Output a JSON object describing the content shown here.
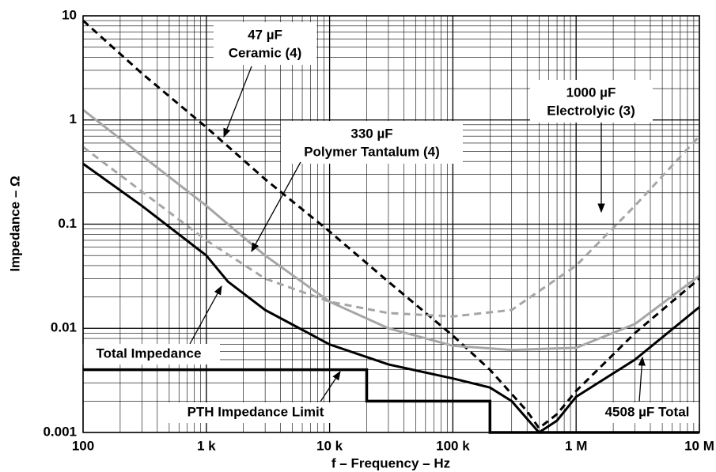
{
  "chart_data": {
    "type": "line",
    "xlabel": "f – Frequency – Hz",
    "ylabel": "Impedance – Ω",
    "xscale": "log",
    "yscale": "log",
    "grid": true,
    "minor_grid": true,
    "xlim": [
      100,
      10000000
    ],
    "ylim": [
      0.001,
      10
    ],
    "xticks": [
      100,
      {
        "value": 1000,
        "label": "1 k"
      },
      {
        "value": 10000,
        "label": "10 k"
      },
      {
        "value": 100000,
        "label": "100 k"
      },
      {
        "value": 1000000,
        "label": "1 M"
      },
      {
        "value": 10000000,
        "label": "10 M"
      }
    ],
    "yticks": [
      0.001,
      0.01,
      0.1,
      1,
      10
    ],
    "series": [
      {
        "name": "47 µF Ceramic (4)",
        "color": "#000000",
        "dash": true,
        "x": [
          100,
          300,
          1000,
          3000,
          10000,
          30000,
          100000,
          200000,
          400000,
          500000,
          700000,
          1000000,
          3000000,
          10000000
        ],
        "values": [
          9,
          2.8,
          0.85,
          0.27,
          0.085,
          0.028,
          0.0085,
          0.004,
          0.0016,
          0.0011,
          0.0015,
          0.0025,
          0.009,
          0.03
        ]
      },
      {
        "name": "330 µF Polymer Tantalum (4)",
        "color": "#a6a6a6",
        "dash": false,
        "x": [
          100,
          1000,
          3000,
          10000,
          30000,
          100000,
          300000,
          1000000,
          3000000,
          10000000
        ],
        "values": [
          1.25,
          0.15,
          0.05,
          0.018,
          0.01,
          0.0068,
          0.0062,
          0.0065,
          0.011,
          0.032
        ]
      },
      {
        "name": "1000 µF Electrolyic (3)",
        "color": "#a6a6a6",
        "dash": true,
        "x": [
          100,
          1000,
          3000,
          10000,
          30000,
          100000,
          300000,
          1000000,
          3000000,
          10000000
        ],
        "values": [
          0.55,
          0.07,
          0.03,
          0.018,
          0.014,
          0.013,
          0.015,
          0.04,
          0.15,
          0.7
        ]
      },
      {
        "name": "Total Impedance",
        "color": "#000000",
        "dash": false,
        "x": [
          100,
          300,
          1000,
          1500,
          3000,
          10000,
          30000,
          100000,
          200000,
          300000,
          500000,
          700000,
          1000000,
          3000000,
          10000000
        ],
        "values": [
          0.38,
          0.15,
          0.05,
          0.028,
          0.015,
          0.007,
          0.0045,
          0.0033,
          0.0027,
          0.002,
          0.001,
          0.0013,
          0.0022,
          0.005,
          0.016
        ]
      },
      {
        "name": "PTH Impedance Limit",
        "color": "#000000",
        "dash": false,
        "thick": true,
        "x": [
          100,
          20000,
          20000,
          200000,
          200000,
          10000000
        ],
        "values": [
          0.004,
          0.004,
          0.002,
          0.002,
          0.001,
          0.001
        ]
      }
    ],
    "annotations": [
      {
        "lines": [
          "47 µF",
          "Ceramic (4)"
        ]
      },
      {
        "lines": [
          "330 µF",
          "Polymer Tantalum (4)"
        ]
      },
      {
        "lines": [
          "1000 µF",
          "Electrolyic (3)"
        ]
      },
      {
        "lines": [
          "Total Impedance"
        ]
      },
      {
        "lines": [
          "PTH Impedance Limit"
        ]
      },
      {
        "lines": [
          "4508 µF Total"
        ]
      }
    ]
  }
}
